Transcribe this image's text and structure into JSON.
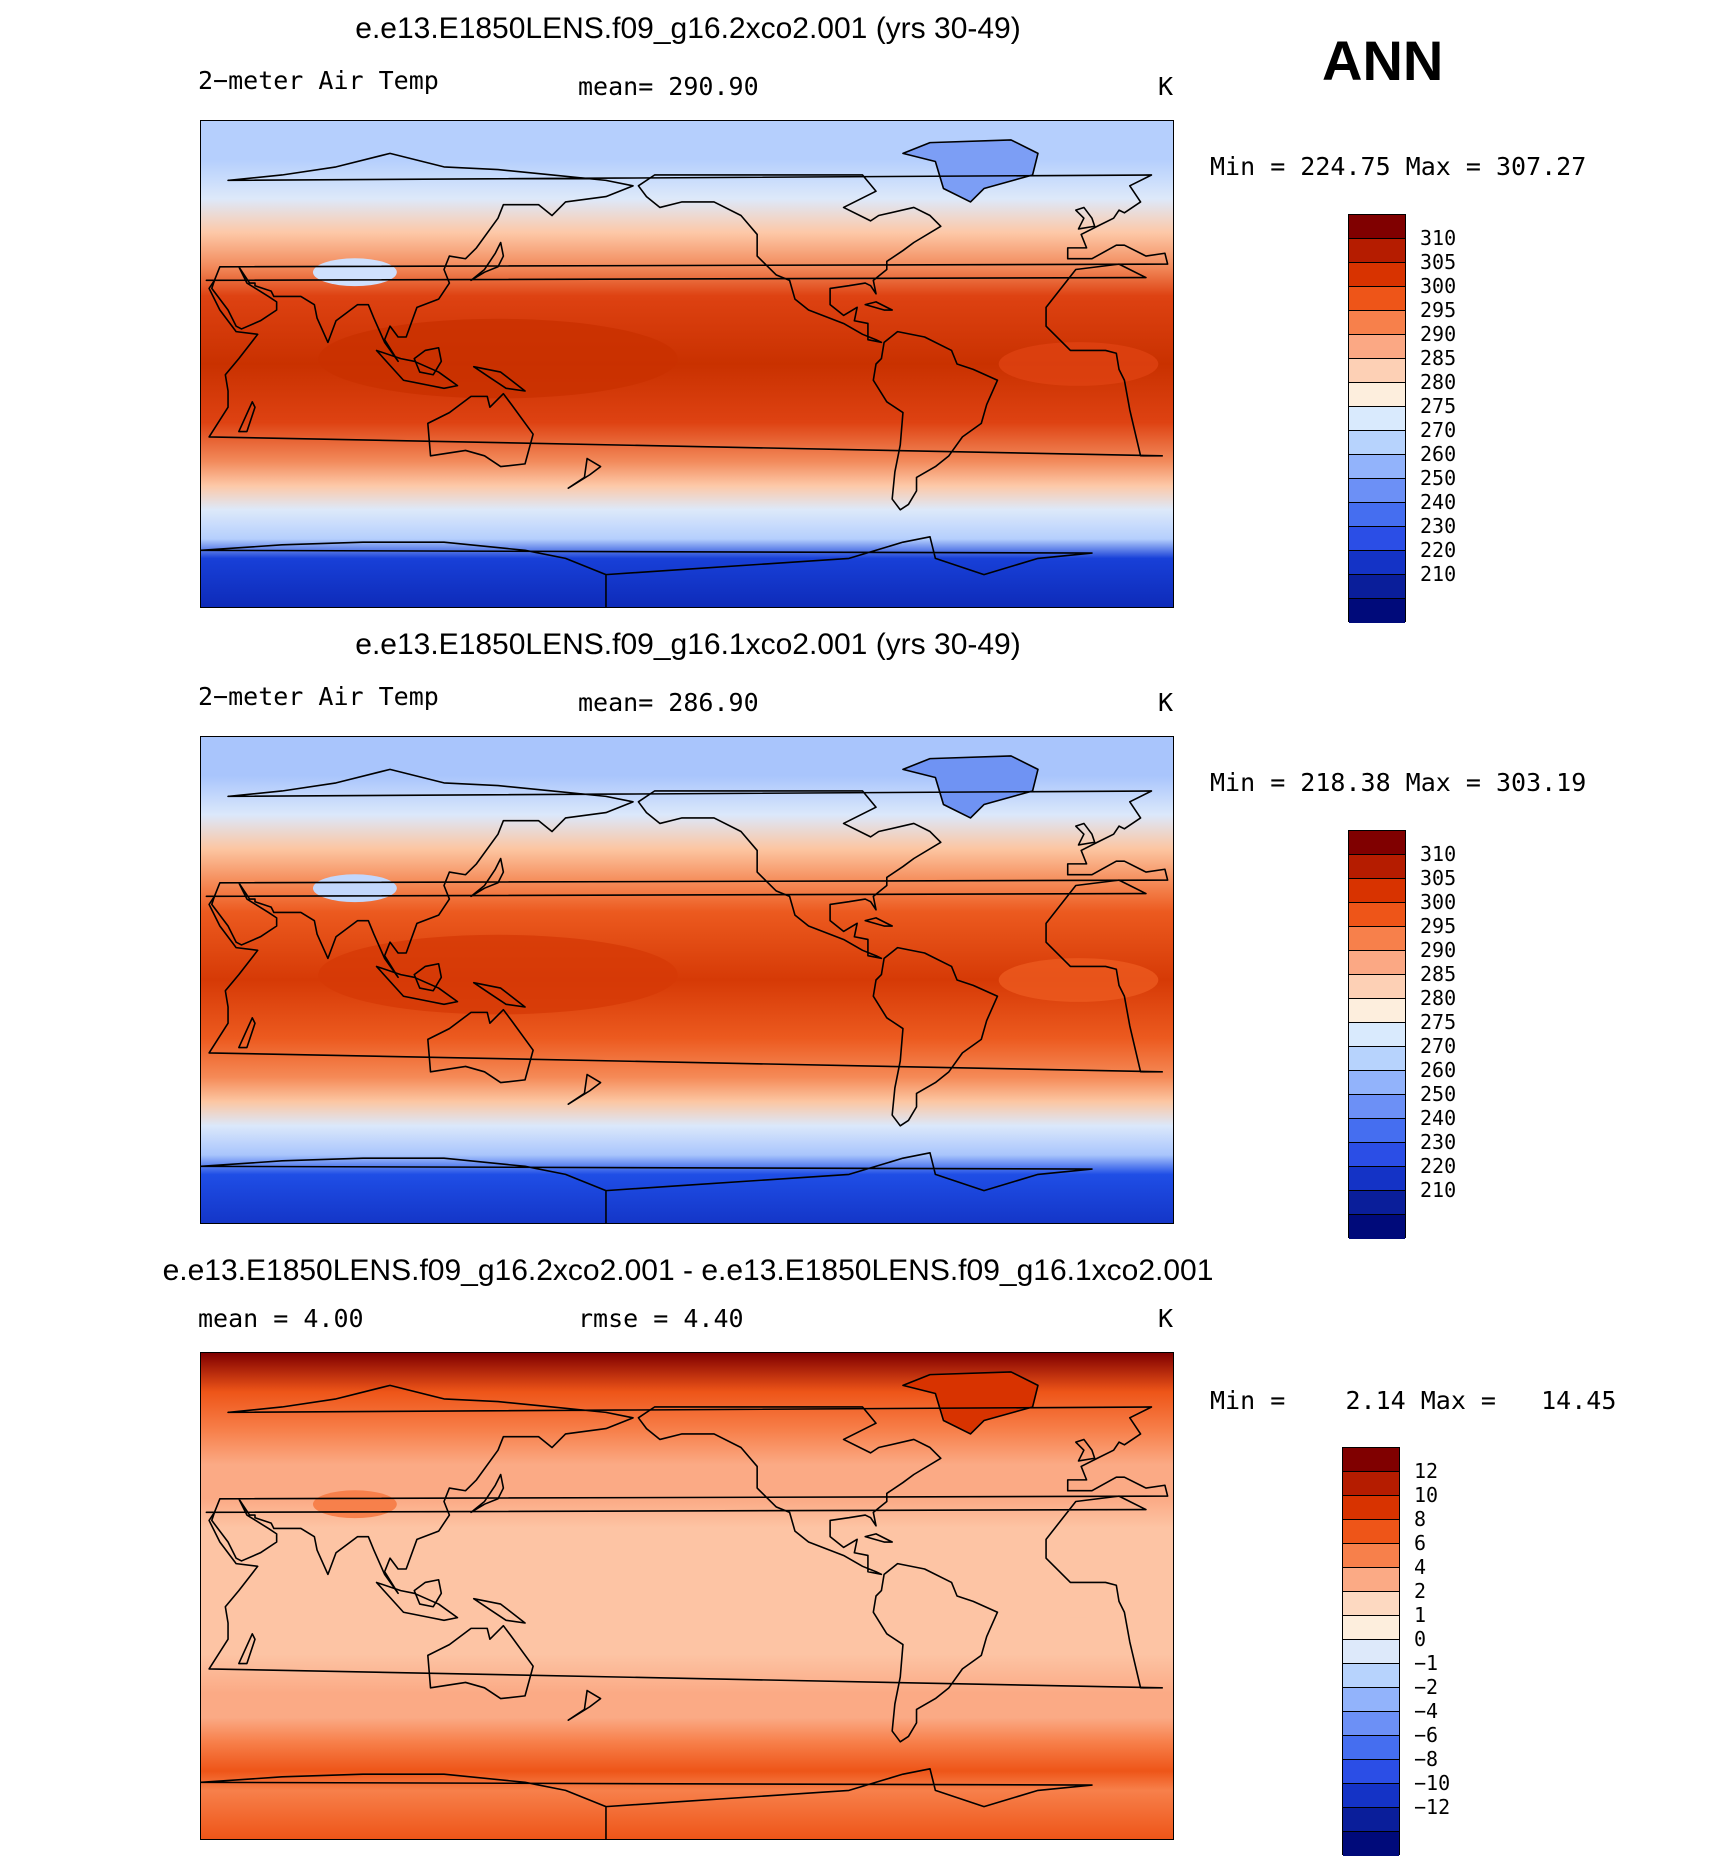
{
  "season": "ANN",
  "panels": [
    {
      "title": "e.e13.E1850LENS.f09_g16.2xco2.001 (yrs 30-49)",
      "left_label": "2−meter Air Temp",
      "center_label": "mean= 290.90",
      "units": "K",
      "minmax": "Min = 224.75 Max = 307.27",
      "colorbar": {
        "colors": [
          "#800000",
          "#b51c00",
          "#d83300",
          "#ee5518",
          "#f7804b",
          "#fba884",
          "#fdd0b5",
          "#fdeedd",
          "#d9eafd",
          "#b7d3fd",
          "#92b3fb",
          "#6c90f6",
          "#456ef0",
          "#2b4ee6",
          "#1433c6",
          "#0a1e9a",
          "#000a7a"
        ],
        "labels": [
          "310",
          "305",
          "300",
          "295",
          "290",
          "285",
          "280",
          "275",
          "270",
          "260",
          "250",
          "240",
          "230",
          "220",
          "210"
        ]
      },
      "map_colors": {
        "polar": "#b5cffd",
        "sub_polar": "#dde9fa",
        "mid": "#fdc8a7",
        "warm": "#f28a5b",
        "tropic": "#de4212",
        "hot": "#c93100",
        "antarctic": "#1840d8",
        "antarctic_deep": "#0e2bb9",
        "greenland": "#7c9ef5",
        "tibet": "#cfe0fd"
      }
    },
    {
      "title": "e.e13.E1850LENS.f09_g16.1xco2.001 (yrs 30-49)",
      "left_label": "2−meter Air Temp",
      "center_label": "mean= 286.90",
      "units": "K",
      "minmax": "Min = 218.38 Max = 303.19",
      "colorbar": {
        "colors": [
          "#800000",
          "#b51c00",
          "#d83300",
          "#ee5518",
          "#f7804b",
          "#fba884",
          "#fdd0b5",
          "#fdeedd",
          "#d9eafd",
          "#b7d3fd",
          "#92b3fb",
          "#6c90f6",
          "#456ef0",
          "#2b4ee6",
          "#1433c6",
          "#0a1e9a",
          "#000a7a"
        ],
        "labels": [
          "310",
          "305",
          "300",
          "295",
          "290",
          "285",
          "280",
          "275",
          "270",
          "260",
          "250",
          "240",
          "230",
          "220",
          "210"
        ]
      },
      "map_colors": {
        "polar": "#a9c5fc",
        "sub_polar": "#dbe8fb",
        "mid": "#fcc6a2",
        "warm": "#f58a57",
        "tropic": "#ec5a1f",
        "hot": "#d63a06",
        "antarctic": "#1f4ee6",
        "antarctic_deep": "#1436c8",
        "greenland": "#6f93f3",
        "tibet": "#c2d7fc"
      }
    },
    {
      "title": "e.e13.E1850LENS.f09_g16.2xco2.001 - e.e13.E1850LENS.f09_g16.1xco2.001",
      "left_label": "mean =    4.00",
      "center_label": "rmse =    4.40",
      "units": "K",
      "minmax": "Min =    2.14 Max =   14.45",
      "colorbar": {
        "colors": [
          "#800000",
          "#b51c00",
          "#d83300",
          "#ee5518",
          "#f7804b",
          "#fbaa85",
          "#fdd9c1",
          "#fdeedd",
          "#dde9fa",
          "#b7d3fd",
          "#92b3fb",
          "#6c90f6",
          "#456ef0",
          "#2b4ee6",
          "#1433c6",
          "#0a1e9a",
          "#000a7a"
        ],
        "labels": [
          "12",
          "10",
          "8",
          "6",
          "4",
          "2",
          "1",
          "0",
          "−1",
          "−2",
          "−4",
          "−6",
          "−8",
          "−10",
          "−12"
        ]
      },
      "map_colors": {
        "polar": "#ee5518",
        "sub_polar": "#f7804b",
        "mid": "#fbaa85",
        "warm": "#fbaa85",
        "tropic": "#fdc4a4",
        "hot": "#fdc4a4",
        "antarctic": "#f7804b",
        "antarctic_deep": "#ee5518",
        "greenland": "#d83300",
        "tibet": "#f7804b",
        "arctic_top": "#800000"
      }
    }
  ]
}
